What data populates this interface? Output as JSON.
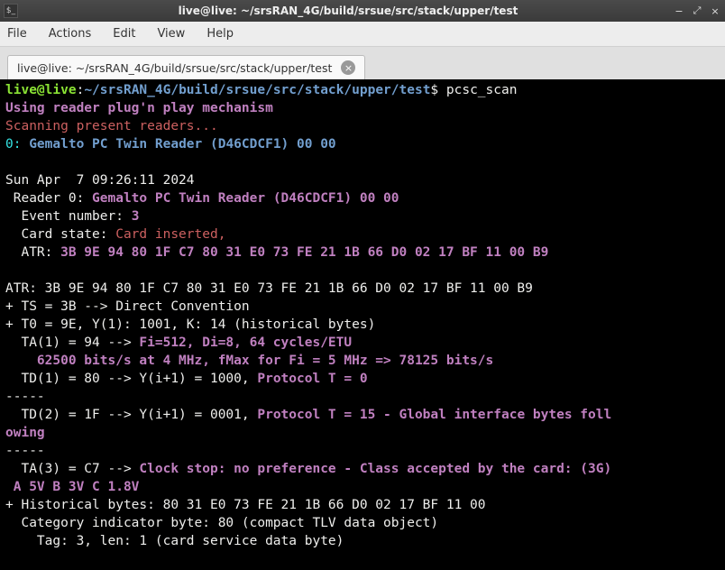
{
  "titlebar": {
    "icon_glyph": "$_",
    "title": "live@live: ~/srsRAN_4G/build/srsue/src/stack/upper/test",
    "min": "−",
    "max": "⤢",
    "close": "×"
  },
  "menubar": {
    "file": "File",
    "actions": "Actions",
    "edit": "Edit",
    "view": "View",
    "help": "Help"
  },
  "tab": {
    "title": "live@live: ~/srsRAN_4G/build/srsue/src/stack/upper/test",
    "close": "×"
  },
  "prompt": {
    "user_host": "live@live",
    "colon": ":",
    "path": "~/srsRAN_4G/build/srsue/src/stack/upper/test",
    "dollar": "$ ",
    "command": "pcsc_scan"
  },
  "lines": {
    "l1": "Using reader plug'n play mechanism",
    "l2": "Scanning present readers...",
    "l3a": "0: ",
    "l3b": "Gemalto PC Twin Reader (D46CDCF1) 00 00",
    "l4": " ",
    "l5": "Sun Apr  7 09:26:11 2024",
    "l6a": " Reader 0: ",
    "l6b": "Gemalto PC Twin Reader (D46CDCF1) 00 00",
    "l7a": "  Event number: ",
    "l7b": "3",
    "l8a": "  Card state: ",
    "l8b": "Card inserted, ",
    "l9a": "  ATR: ",
    "l9b": "3B 9E 94 80 1F C7 80 31 E0 73 FE 21 1B 66 D0 02 17 BF 11 00 B9",
    "l10": "",
    "l11": "ATR: 3B 9E 94 80 1F C7 80 31 E0 73 FE 21 1B 66 D0 02 17 BF 11 00 B9",
    "l12": "+ TS = 3B --> Direct Convention",
    "l13": "+ T0 = 9E, Y(1): 1001, K: 14 (historical bytes)",
    "l14a": "  TA(1) = 94 --> ",
    "l14b": "Fi=512, Di=8, 64 cycles/ETU",
    "l15": "    62500 bits/s at 4 MHz, fMax for Fi = 5 MHz => 78125 bits/s",
    "l16a": "  TD(1) = 80 --> Y(i+1) = 1000, ",
    "l16b": "Protocol T = 0",
    "l17": "-----",
    "l18a": "  TD(2) = 1F --> Y(i+1) = 0001, ",
    "l18b": "Protocol T = 15 - Global interface bytes foll",
    "l18c": "owing",
    "l19": "-----",
    "l20a": "  TA(3) = C7 --> ",
    "l20b": "Clock stop: no preference - Class accepted by the card: (3G)",
    "l20c": " A 5V B 3V C 1.8V",
    "l21": "+ Historical bytes: 80 31 E0 73 FE 21 1B 66 D0 02 17 BF 11 00",
    "l22": "  Category indicator byte: 80 (compact TLV data object)",
    "l23": "    Tag: 3, len: 1 (card service data byte)"
  }
}
